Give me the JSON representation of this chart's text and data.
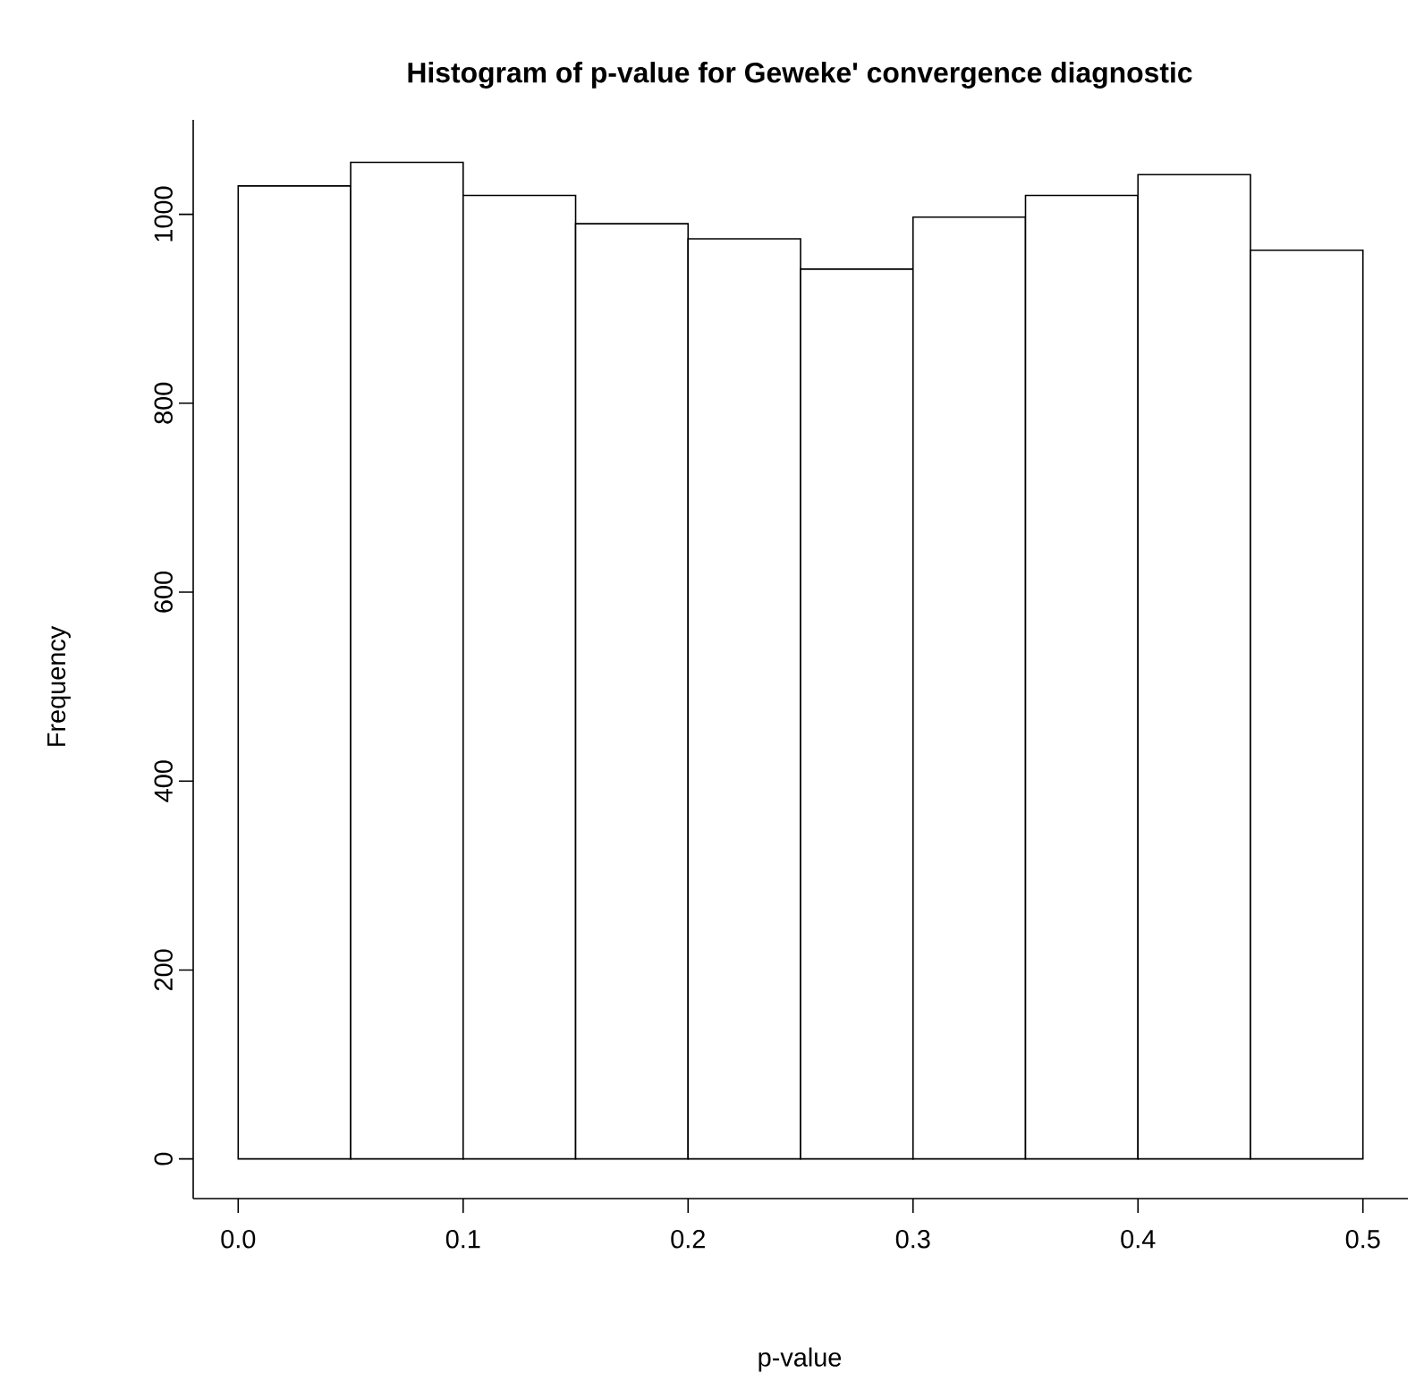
{
  "chart_data": {
    "type": "histogram",
    "title": "Histogram of p-value for Geweke' convergence diagnostic",
    "xlabel": "p-value",
    "ylabel": "Frequency",
    "bins": [
      0,
      0.05,
      0.1,
      0.15,
      0.2,
      0.25,
      0.3,
      0.35,
      0.4,
      0.45,
      0.5
    ],
    "values": [
      1030,
      1055,
      1020,
      990,
      974,
      942,
      997,
      1020,
      1042,
      962
    ],
    "color": "#ffffff",
    "xlim": [
      -0.02,
      0.52
    ],
    "ylim": [
      -42,
      1100
    ],
    "xticks": [
      {
        "value": 0,
        "label": "0.0"
      },
      0.1,
      0.2,
      0.3,
      0.4,
      0.5
    ],
    "yticks": [
      0,
      200,
      400,
      600,
      800,
      1000
    ],
    "grid": false
  }
}
